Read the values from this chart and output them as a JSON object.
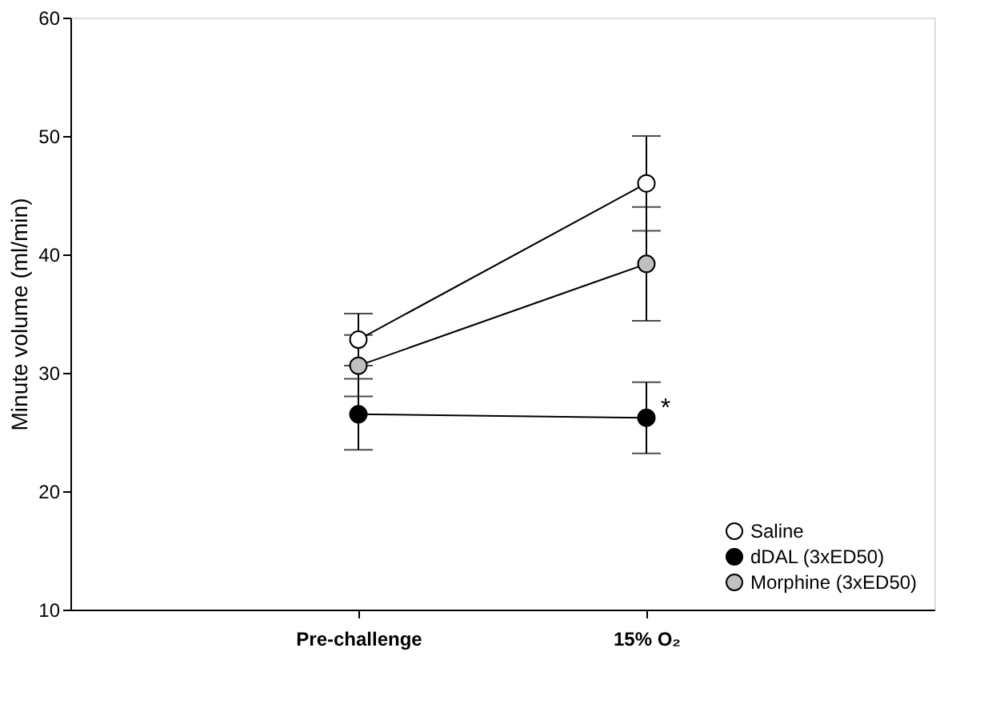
{
  "chart_data": {
    "type": "line",
    "ylabel": "Minute volume (ml/min)",
    "categories": [
      "Pre-challenge",
      "15% O₂"
    ],
    "series": [
      {
        "name": "Saline",
        "color": "#ffffff",
        "values": [
          32.8,
          46.0
        ],
        "errors": [
          2.2,
          4.0
        ]
      },
      {
        "name": "dDAL (3xED50)",
        "color": "#000000",
        "values": [
          26.5,
          26.2
        ],
        "errors": [
          3.0,
          3.0
        ]
      },
      {
        "name": "Morphine (3xED50)",
        "color": "#c0c0c0",
        "values": [
          30.6,
          39.2
        ],
        "errors": [
          2.6,
          4.8
        ]
      }
    ],
    "ylim": [
      10,
      60
    ],
    "yticks": [
      10,
      20,
      30,
      40,
      50,
      60
    ],
    "grid": false,
    "legend": "bottom right",
    "marker": "circle",
    "line_style": "solid",
    "annotations": [
      {
        "text": "*",
        "x": "15% O₂",
        "y": 26.2
      }
    ]
  }
}
